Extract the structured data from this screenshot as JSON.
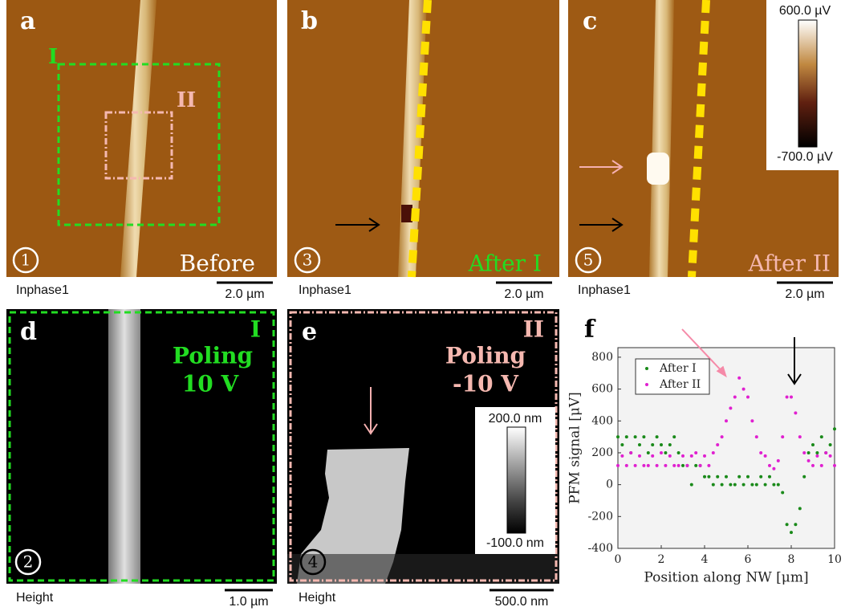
{
  "panels": [
    {
      "letter": "a",
      "number": "1",
      "region_labels": [
        "I",
        "II"
      ],
      "caption": "Before",
      "channel": "Inphase1",
      "scale": "2.0 µm"
    },
    {
      "letter": "b",
      "number": "3",
      "caption": "After I",
      "channel": "Inphase1",
      "scale": "2.0 µm"
    },
    {
      "letter": "c",
      "number": "5",
      "caption": "After II",
      "channel": "Inphase1",
      "scale": "2.0 µm",
      "colorbar": [
        "600.0 µV",
        "-700.0 µV"
      ]
    },
    {
      "letter": "d",
      "number": "2",
      "region": "I",
      "caption": [
        "Poling",
        "10 V"
      ],
      "channel": "Height",
      "scale": "1.0 µm"
    },
    {
      "letter": "e",
      "number": "4",
      "region": "II",
      "caption": [
        "Poling",
        "-10 V"
      ],
      "channel": "Height",
      "scale": "500.0 nm",
      "colorbar": [
        "200.0 nm",
        "-100.0 nm"
      ]
    }
  ],
  "chart_data": {
    "type": "scatter",
    "panel_letter": "f",
    "x_label": "Position along NW [μm]",
    "y_label": "PFM signal [μV]",
    "xlim": [
      0,
      10
    ],
    "xticks": [
      0,
      2,
      4,
      6,
      8,
      10
    ],
    "ylim": [
      -400,
      860
    ],
    "yticks": [
      -400,
      -200,
      0,
      200,
      400,
      600,
      800
    ],
    "legend": "upper left",
    "x": [
      0,
      0.2,
      0.4,
      0.6,
      0.8,
      1.0,
      1.2,
      1.4,
      1.6,
      1.8,
      2.0,
      2.2,
      2.4,
      2.6,
      2.8,
      3.0,
      3.2,
      3.4,
      3.6,
      3.8,
      4.0,
      4.2,
      4.4,
      4.6,
      4.8,
      5.0,
      5.2,
      5.4,
      5.6,
      5.8,
      6.0,
      6.2,
      6.4,
      6.6,
      6.8,
      7.0,
      7.2,
      7.4,
      7.6,
      7.8,
      8.0,
      8.2,
      8.4,
      8.6,
      8.8,
      9.0,
      9.2,
      9.4,
      9.6,
      9.8,
      10
    ],
    "series": [
      {
        "name": "After I",
        "color": "#1a8a1a",
        "values": [
          300,
          250,
          300,
          200,
          300,
          250,
          300,
          200,
          250,
          300,
          250,
          200,
          250,
          300,
          200,
          120,
          120,
          0,
          120,
          120,
          50,
          50,
          0,
          50,
          0,
          50,
          0,
          0,
          50,
          0,
          50,
          0,
          0,
          50,
          0,
          50,
          0,
          0,
          -50,
          -250,
          -300,
          -250,
          -150,
          50,
          200,
          250,
          200,
          300,
          200,
          250,
          350
        ]
      },
      {
        "name": "After II",
        "color": "#e020d0",
        "values": [
          120,
          180,
          120,
          200,
          120,
          180,
          120,
          120,
          180,
          120,
          200,
          120,
          180,
          120,
          120,
          180,
          120,
          180,
          200,
          120,
          180,
          120,
          200,
          250,
          300,
          400,
          480,
          550,
          670,
          600,
          550,
          400,
          300,
          200,
          180,
          120,
          100,
          150,
          300,
          550,
          550,
          450,
          300,
          200,
          150,
          120,
          180,
          120,
          200,
          180,
          120
        ]
      }
    ]
  }
}
